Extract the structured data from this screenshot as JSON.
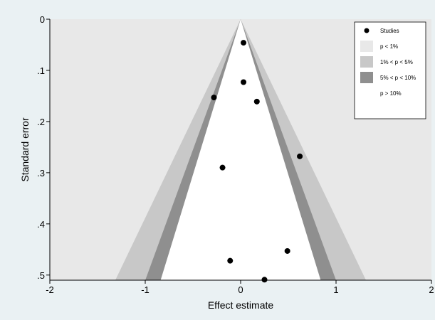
{
  "chart_data": {
    "type": "scatter",
    "subtype": "contour-enhanced funnel plot",
    "xlabel": "Effect estimate",
    "ylabel": "Standard error",
    "xlim": [
      -2,
      2
    ],
    "ylim": [
      0,
      0.51
    ],
    "y_reversed": true,
    "x_ticks": [
      -2,
      -1,
      0,
      1,
      2
    ],
    "x_tick_labels": [
      "-2",
      "-1",
      "0",
      "1",
      "2"
    ],
    "y_ticks": [
      0,
      0.1,
      0.2,
      0.3,
      0.4,
      0.5
    ],
    "y_tick_labels": [
      "0",
      ".1",
      ".2",
      ".3",
      ".4",
      ".5"
    ],
    "grid": false,
    "legend_position": "top-right",
    "legend": [
      {
        "label": "Studies",
        "kind": "marker",
        "color": "#000000"
      },
      {
        "label": "p < 1%",
        "kind": "fill",
        "color": "#e8e8e8"
      },
      {
        "label": "1% < p < 5%",
        "kind": "fill",
        "color": "#c8c8c8"
      },
      {
        "label": "5% < p < 10%",
        "kind": "fill",
        "color": "#8f8f8f"
      },
      {
        "label": "p > 10%",
        "kind": "fill",
        "color": "#ffffff"
      }
    ],
    "contours": {
      "center": 0,
      "z_values": [
        2.576,
        1.96,
        1.645
      ],
      "region_colors": [
        "#c8c8c8",
        "#8f8f8f",
        "#ffffff"
      ],
      "outer_color": "#e8e8e8"
    },
    "points": [
      {
        "x": 0.03,
        "y": 0.046
      },
      {
        "x": 0.03,
        "y": 0.123
      },
      {
        "x": -0.28,
        "y": 0.153
      },
      {
        "x": 0.17,
        "y": 0.161
      },
      {
        "x": 0.62,
        "y": 0.268
      },
      {
        "x": -0.19,
        "y": 0.29
      },
      {
        "x": 0.49,
        "y": 0.453
      },
      {
        "x": -0.11,
        "y": 0.472
      },
      {
        "x": 0.25,
        "y": 0.509
      }
    ]
  }
}
